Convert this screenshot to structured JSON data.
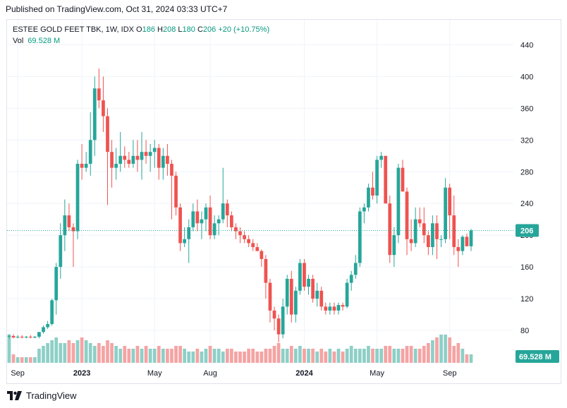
{
  "header": {
    "published": "Published on TradingView.com, Oct 31, 2024 03:33 UTC+7"
  },
  "legend": {
    "symbol": "ESTEE GOLD FEET TBK, 1W, IDX",
    "o_label": "O",
    "o_value": "186",
    "h_label": "H",
    "h_value": "208",
    "l_label": "L",
    "l_value": "180",
    "c_label": "C",
    "c_value": "206",
    "change": "+20 (+10.75%)",
    "vol_label": "Vol",
    "vol_value": "69.528 M"
  },
  "footer": {
    "brand": "TradingView"
  },
  "colors": {
    "up": "#26a69a",
    "down": "#ef5350",
    "vol_up": "#8ecfc7",
    "vol_down": "#f5a3a3",
    "last_price": "#26a69a"
  },
  "chart_data": {
    "type": "candlestick",
    "y_axis": {
      "min": 40,
      "max": 460,
      "ticks": [
        80,
        120,
        160,
        200,
        240,
        280,
        320,
        360,
        400,
        440
      ]
    },
    "x_axis": {
      "ticks": [
        {
          "label": "Sep",
          "index": 2
        },
        {
          "label": "2023",
          "index": 17,
          "bold": true
        },
        {
          "label": "May",
          "index": 34
        },
        {
          "label": "Aug",
          "index": 47
        },
        {
          "label": "2024",
          "index": 69,
          "bold": true
        },
        {
          "label": "May",
          "index": 86
        },
        {
          "label": "Sep",
          "index": 103
        }
      ]
    },
    "last_price": {
      "value": 206,
      "label": "206"
    },
    "volume_label": "69.528 M",
    "candles": [
      [
        73,
        75,
        70,
        73,
        1.0
      ],
      [
        73,
        75,
        70,
        71,
        0.3
      ],
      [
        71,
        74,
        70,
        72,
        0.2
      ],
      [
        72,
        74,
        70,
        71,
        0.2
      ],
      [
        71,
        73,
        70,
        72,
        0.2
      ],
      [
        72,
        74,
        70,
        71,
        0.2
      ],
      [
        71,
        73,
        70,
        72,
        0.2
      ],
      [
        72,
        75,
        70,
        78,
        0.5
      ],
      [
        78,
        86,
        76,
        84,
        0.6
      ],
      [
        84,
        92,
        82,
        88,
        0.7
      ],
      [
        88,
        120,
        86,
        118,
        0.8
      ],
      [
        118,
        165,
        100,
        160,
        0.9
      ],
      [
        160,
        215,
        145,
        200,
        0.7
      ],
      [
        200,
        245,
        180,
        225,
        0.7
      ],
      [
        225,
        240,
        205,
        210,
        0.8
      ],
      [
        210,
        215,
        160,
        205,
        0.7
      ],
      [
        205,
        295,
        195,
        290,
        0.8
      ],
      [
        290,
        315,
        270,
        285,
        0.9
      ],
      [
        285,
        305,
        280,
        290,
        0.8
      ],
      [
        290,
        355,
        275,
        320,
        0.7
      ],
      [
        320,
        400,
        300,
        385,
        0.6
      ],
      [
        385,
        410,
        360,
        370,
        0.7
      ],
      [
        370,
        400,
        330,
        350,
        0.6
      ],
      [
        350,
        360,
        238,
        305,
        0.8
      ],
      [
        305,
        320,
        260,
        285,
        0.7
      ],
      [
        285,
        310,
        270,
        290,
        0.6
      ],
      [
        290,
        330,
        280,
        300,
        0.5
      ],
      [
        300,
        312,
        285,
        295,
        0.6
      ],
      [
        295,
        305,
        285,
        290,
        0.5
      ],
      [
        290,
        320,
        285,
        300,
        0.5
      ],
      [
        300,
        320,
        280,
        295,
        0.6
      ],
      [
        295,
        330,
        270,
        305,
        0.5
      ],
      [
        305,
        320,
        290,
        300,
        0.6
      ],
      [
        300,
        315,
        280,
        305,
        0.5
      ],
      [
        305,
        320,
        285,
        310,
        0.5
      ],
      [
        310,
        315,
        270,
        285,
        0.6
      ],
      [
        285,
        310,
        270,
        300,
        0.5
      ],
      [
        300,
        315,
        275,
        290,
        0.5
      ],
      [
        290,
        295,
        220,
        275,
        0.5
      ],
      [
        275,
        280,
        225,
        235,
        0.6
      ],
      [
        235,
        240,
        180,
        190,
        0.6
      ],
      [
        190,
        210,
        185,
        195,
        0.5
      ],
      [
        195,
        220,
        165,
        210,
        0.4
      ],
      [
        210,
        240,
        205,
        230,
        0.4
      ],
      [
        230,
        245,
        205,
        215,
        0.5
      ],
      [
        215,
        230,
        195,
        220,
        0.4
      ],
      [
        220,
        240,
        205,
        235,
        0.5
      ],
      [
        235,
        250,
        195,
        200,
        0.6
      ],
      [
        200,
        225,
        195,
        215,
        0.5
      ],
      [
        215,
        225,
        200,
        220,
        0.5
      ],
      [
        220,
        285,
        215,
        240,
        0.4
      ],
      [
        240,
        245,
        210,
        225,
        0.5
      ],
      [
        225,
        230,
        205,
        210,
        0.5
      ],
      [
        210,
        215,
        195,
        205,
        0.4
      ],
      [
        205,
        210,
        190,
        200,
        0.4
      ],
      [
        200,
        205,
        190,
        195,
        0.4
      ],
      [
        195,
        200,
        185,
        190,
        0.5
      ],
      [
        190,
        195,
        180,
        185,
        0.5
      ],
      [
        185,
        190,
        180,
        180,
        0.4
      ],
      [
        180,
        182,
        160,
        170,
        0.4
      ],
      [
        170,
        175,
        120,
        140,
        0.5
      ],
      [
        140,
        145,
        90,
        105,
        0.5
      ],
      [
        105,
        110,
        80,
        95,
        0.6
      ],
      [
        95,
        100,
        65,
        75,
        0.7
      ],
      [
        75,
        120,
        70,
        110,
        0.5
      ],
      [
        110,
        150,
        100,
        145,
        0.5
      ],
      [
        145,
        155,
        90,
        100,
        0.6
      ],
      [
        100,
        135,
        90,
        130,
        0.5
      ],
      [
        130,
        170,
        125,
        165,
        0.6
      ],
      [
        165,
        170,
        130,
        135,
        0.5
      ],
      [
        135,
        150,
        125,
        145,
        0.5
      ],
      [
        145,
        150,
        115,
        120,
        0.5
      ],
      [
        120,
        140,
        110,
        130,
        0.4
      ],
      [
        130,
        135,
        105,
        110,
        0.5
      ],
      [
        110,
        115,
        100,
        105,
        0.4
      ],
      [
        105,
        115,
        100,
        110,
        0.5
      ],
      [
        110,
        115,
        100,
        105,
        0.4
      ],
      [
        105,
        115,
        100,
        112,
        0.5
      ],
      [
        112,
        115,
        105,
        110,
        0.4
      ],
      [
        110,
        145,
        108,
        140,
        0.5
      ],
      [
        140,
        155,
        130,
        150,
        0.6
      ],
      [
        150,
        175,
        145,
        165,
        0.5
      ],
      [
        165,
        235,
        160,
        230,
        0.5
      ],
      [
        230,
        240,
        215,
        235,
        0.5
      ],
      [
        235,
        265,
        230,
        260,
        0.6
      ],
      [
        260,
        280,
        245,
        250,
        0.5
      ],
      [
        250,
        300,
        240,
        295,
        0.5
      ],
      [
        295,
        305,
        285,
        300,
        0.5
      ],
      [
        300,
        300,
        240,
        240,
        0.6
      ],
      [
        240,
        250,
        165,
        175,
        0.6
      ],
      [
        175,
        210,
        160,
        200,
        0.5
      ],
      [
        200,
        290,
        190,
        285,
        0.5
      ],
      [
        285,
        295,
        255,
        255,
        0.5
      ],
      [
        255,
        260,
        175,
        195,
        0.6
      ],
      [
        195,
        220,
        180,
        190,
        0.6
      ],
      [
        190,
        235,
        185,
        220,
        0.5
      ],
      [
        220,
        235,
        210,
        215,
        0.5
      ],
      [
        215,
        235,
        190,
        200,
        0.6
      ],
      [
        200,
        205,
        175,
        185,
        0.7
      ],
      [
        185,
        225,
        175,
        215,
        0.8
      ],
      [
        215,
        225,
        170,
        195,
        0.9
      ],
      [
        195,
        200,
        185,
        195,
        1.0
      ],
      [
        195,
        272,
        190,
        260,
        1.0
      ],
      [
        260,
        265,
        195,
        225,
        0.9
      ],
      [
        225,
        250,
        175,
        185,
        0.6
      ],
      [
        185,
        195,
        160,
        180,
        0.7
      ],
      [
        180,
        200,
        175,
        198,
        0.5
      ],
      [
        198,
        202,
        188,
        186,
        0.3
      ],
      [
        186,
        208,
        180,
        206,
        0.3
      ]
    ]
  }
}
